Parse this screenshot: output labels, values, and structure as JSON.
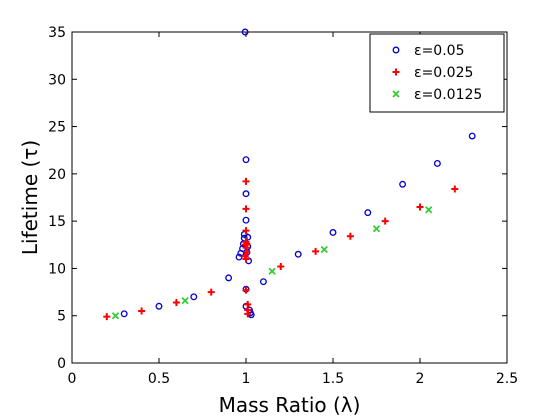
{
  "chart_data": {
    "type": "scatter",
    "xlabel": "Mass Ratio (λ)",
    "ylabel": "Lifetime (τ)",
    "xlim": [
      0,
      2.5
    ],
    "ylim": [
      0,
      35
    ],
    "xticks": [
      "0",
      "0.5",
      "1",
      "1.5",
      "2",
      "2.5"
    ],
    "yticks": [
      "0",
      "5",
      "10",
      "15",
      "20",
      "25",
      "30",
      "35"
    ],
    "grid": false,
    "legend_position": "top-right",
    "series": [
      {
        "name": "ε=0.05",
        "marker": "circle",
        "color": "#0000cc",
        "x": [
          0.3,
          0.5,
          0.7,
          0.9,
          0.96,
          0.97,
          0.98,
          0.985,
          0.99,
          0.99,
          0.995,
          1.0,
          1.0,
          1.0,
          1.0,
          1.0,
          1.005,
          1.01,
          1.01,
          1.015,
          1.02,
          1.025,
          1.03,
          1.1,
          1.3,
          1.5,
          1.7,
          1.9,
          2.1,
          2.3
        ],
        "y": [
          5.2,
          6.0,
          7.0,
          9.0,
          11.2,
          11.6,
          12.1,
          12.6,
          13.2,
          13.6,
          35.0,
          21.5,
          17.9,
          15.1,
          7.8,
          6.0,
          11.7,
          12.3,
          13.3,
          10.8,
          5.6,
          5.3,
          5.1,
          8.6,
          11.5,
          13.8,
          15.9,
          18.9,
          21.1,
          24.0
        ]
      },
      {
        "name": "ε=0.025",
        "marker": "plus",
        "color": "#ff0000",
        "x": [
          0.2,
          0.4,
          0.6,
          0.8,
          0.995,
          0.997,
          1.0,
          1.0,
          1.0,
          1.0,
          1.0,
          1.0,
          1.0,
          1.005,
          1.005,
          1.01,
          1.01,
          1.01,
          1.2,
          1.4,
          1.6,
          1.8,
          2.0,
          2.2
        ],
        "y": [
          4.9,
          5.5,
          6.4,
          7.5,
          11.3,
          12.5,
          19.2,
          16.3,
          14.0,
          12.8,
          12.2,
          11.0,
          7.7,
          11.7,
          12.6,
          6.2,
          5.6,
          5.2,
          10.2,
          11.8,
          13.4,
          15.0,
          16.5,
          18.4
        ]
      },
      {
        "name": "ε=0.0125",
        "marker": "x",
        "color": "#33cc33",
        "x": [
          0.25,
          0.65,
          1.15,
          1.45,
          1.75,
          2.05
        ],
        "y": [
          5.0,
          6.6,
          9.7,
          12.0,
          14.2,
          16.2
        ]
      }
    ]
  }
}
